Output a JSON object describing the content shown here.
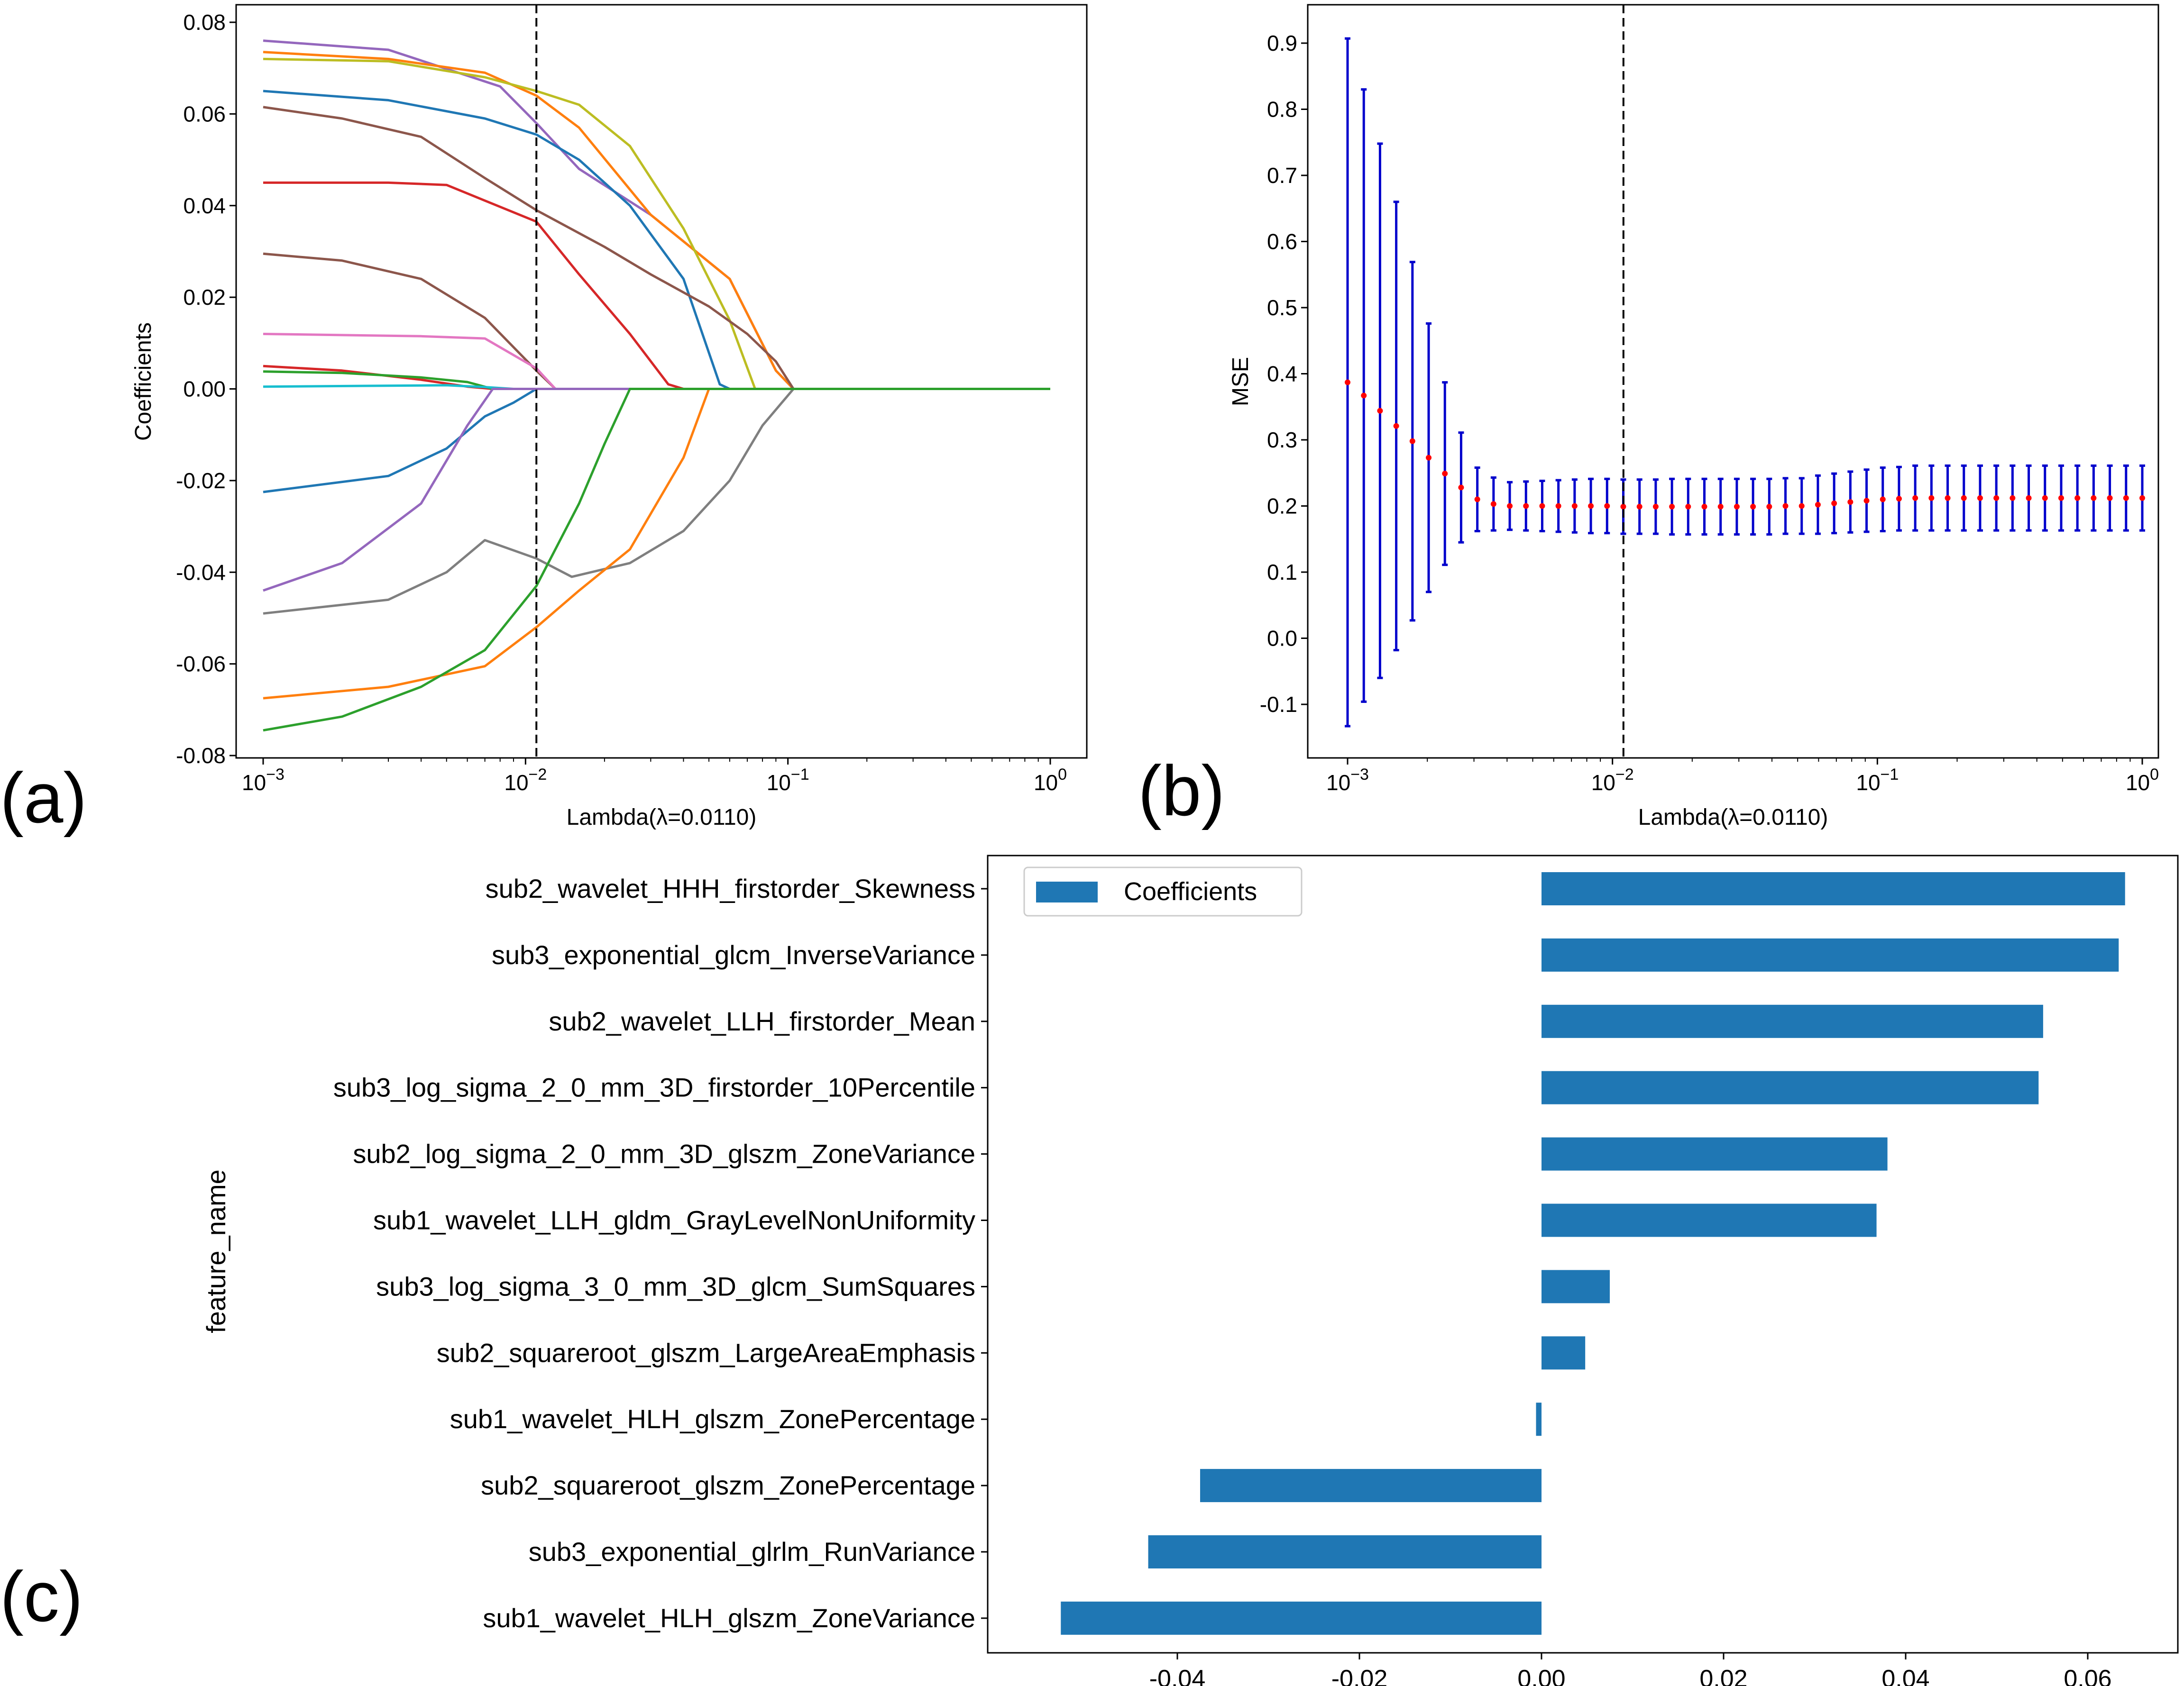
{
  "chart_data": [
    {
      "type": "line",
      "panel_label": "(a)",
      "title": "",
      "xlabel": "Lambda(λ=0.0110)",
      "ylabel": "Coefficients",
      "xscale": "log",
      "xlim": [
        0.001,
        1
      ],
      "ylim": [
        -0.08,
        0.08
      ],
      "xticks": [
        {
          "value": 0.001,
          "base": "10",
          "exp": "−3"
        },
        {
          "value": 0.01,
          "base": "10",
          "exp": "−2"
        },
        {
          "value": 0.1,
          "base": "10",
          "exp": "−1"
        },
        {
          "value": 1,
          "base": "10",
          "exp": "0"
        }
      ],
      "yticks": [
        {
          "value": 0.08,
          "label": "0.08"
        },
        {
          "value": 0.06,
          "label": "0.06"
        },
        {
          "value": 0.04,
          "label": "0.04"
        },
        {
          "value": 0.02,
          "label": "0.02"
        },
        {
          "value": 0.0,
          "label": "0.00"
        },
        {
          "value": -0.02,
          "label": "-0.02"
        },
        {
          "value": -0.04,
          "label": "-0.04"
        },
        {
          "value": -0.06,
          "label": "-0.06"
        },
        {
          "value": -0.08,
          "label": "-0.08"
        }
      ],
      "vline": 0.011,
      "series": [
        {
          "name": "f1",
          "color": "#9467bd",
          "x": [
            0.001,
            0.003,
            0.008,
            0.011,
            0.016,
            0.03,
            0.06,
            0.09,
            0.105,
            1
          ],
          "y": [
            0.076,
            0.074,
            0.066,
            0.058,
            0.048,
            0.038,
            0.024,
            0.004,
            0.0,
            0.0
          ]
        },
        {
          "name": "f2",
          "color": "#ff7f0e",
          "x": [
            0.001,
            0.003,
            0.007,
            0.011,
            0.016,
            0.03,
            0.06,
            0.09,
            0.105,
            1
          ],
          "y": [
            0.0735,
            0.072,
            0.069,
            0.064,
            0.057,
            0.038,
            0.024,
            0.004,
            0.0,
            0.0
          ]
        },
        {
          "name": "f3",
          "color": "#bcbd22",
          "x": [
            0.001,
            0.003,
            0.007,
            0.011,
            0.016,
            0.025,
            0.04,
            0.06,
            0.075,
            1
          ],
          "y": [
            0.072,
            0.0715,
            0.068,
            0.065,
            0.062,
            0.053,
            0.035,
            0.015,
            0.0,
            0.0
          ]
        },
        {
          "name": "f4",
          "color": "#1f77b4",
          "x": [
            0.001,
            0.003,
            0.007,
            0.011,
            0.016,
            0.025,
            0.04,
            0.055,
            0.06,
            1
          ],
          "y": [
            0.065,
            0.063,
            0.059,
            0.0555,
            0.05,
            0.04,
            0.024,
            0.001,
            0.0,
            0.0
          ]
        },
        {
          "name": "f5",
          "color": "#8c564b",
          "x": [
            0.001,
            0.002,
            0.004,
            0.007,
            0.011,
            0.02,
            0.03,
            0.05,
            0.07,
            0.09,
            0.105,
            1
          ],
          "y": [
            0.0615,
            0.059,
            0.055,
            0.046,
            0.039,
            0.031,
            0.025,
            0.018,
            0.012,
            0.006,
            0.0,
            0.0
          ]
        },
        {
          "name": "f6",
          "color": "#d62728",
          "x": [
            0.001,
            0.003,
            0.005,
            0.011,
            0.016,
            0.025,
            0.035,
            0.04,
            1
          ],
          "y": [
            0.045,
            0.045,
            0.0445,
            0.0365,
            0.025,
            0.012,
            0.001,
            0.0,
            0.0
          ]
        },
        {
          "name": "f7",
          "color": "#8c564b",
          "x": [
            0.001,
            0.002,
            0.004,
            0.007,
            0.011,
            0.013,
            1
          ],
          "y": [
            0.0295,
            0.028,
            0.024,
            0.0155,
            0.004,
            0.0,
            0.0
          ]
        },
        {
          "name": "f8",
          "color": "#e377c2",
          "x": [
            0.001,
            0.004,
            0.007,
            0.011,
            0.013,
            1
          ],
          "y": [
            0.012,
            0.0115,
            0.011,
            0.0045,
            0.0,
            0.0
          ]
        },
        {
          "name": "f9",
          "color": "#d62728",
          "x": [
            0.001,
            0.002,
            0.004,
            0.006,
            0.0075,
            1
          ],
          "y": [
            0.005,
            0.004,
            0.002,
            0.0005,
            0.0,
            0.0
          ]
        },
        {
          "name": "f10",
          "color": "#2ca02c",
          "x": [
            0.001,
            0.002,
            0.004,
            0.006,
            0.0075,
            1
          ],
          "y": [
            0.0038,
            0.0035,
            0.0025,
            0.0015,
            0.0,
            0.0
          ]
        },
        {
          "name": "f11",
          "color": "#17becf",
          "x": [
            0.001,
            0.005,
            0.007,
            0.009,
            1
          ],
          "y": [
            0.0005,
            0.0008,
            0.0004,
            0.0,
            0.0
          ]
        },
        {
          "name": "f12",
          "color": "#1f77b4",
          "x": [
            0.001,
            0.003,
            0.005,
            0.007,
            0.009,
            0.011,
            1
          ],
          "y": [
            -0.0225,
            -0.019,
            -0.013,
            -0.006,
            -0.003,
            0.0,
            0.0
          ]
        },
        {
          "name": "f13",
          "color": "#9467bd",
          "x": [
            0.001,
            0.002,
            0.004,
            0.006,
            0.0075,
            1
          ],
          "y": [
            -0.044,
            -0.038,
            -0.025,
            -0.008,
            0.0,
            0.0
          ]
        },
        {
          "name": "f14",
          "color": "#7f7f7f",
          "x": [
            0.001,
            0.003,
            0.005,
            0.007,
            0.011,
            0.015,
            0.025,
            0.04,
            0.06,
            0.08,
            0.105,
            1
          ],
          "y": [
            -0.049,
            -0.046,
            -0.04,
            -0.033,
            -0.037,
            -0.041,
            -0.038,
            -0.031,
            -0.02,
            -0.008,
            0.0,
            0.0
          ]
        },
        {
          "name": "f15",
          "color": "#ff7f0e",
          "x": [
            0.001,
            0.003,
            0.007,
            0.011,
            0.016,
            0.025,
            0.04,
            0.05,
            1
          ],
          "y": [
            -0.0675,
            -0.065,
            -0.0605,
            -0.052,
            -0.044,
            -0.035,
            -0.015,
            0.0,
            0.0
          ]
        },
        {
          "name": "f16",
          "color": "#2ca02c",
          "x": [
            0.001,
            0.002,
            0.004,
            0.007,
            0.011,
            0.016,
            0.02,
            0.025,
            1
          ],
          "y": [
            -0.0745,
            -0.0715,
            -0.065,
            -0.057,
            -0.043,
            -0.025,
            -0.012,
            0.0,
            0.0
          ]
        }
      ]
    },
    {
      "type": "scatter",
      "panel_label": "(b)",
      "title": "",
      "xlabel": "Lambda(λ=0.0110)",
      "ylabel": "MSE",
      "xscale": "log",
      "xlim": [
        0.001,
        1
      ],
      "ylim": [
        -0.16,
        0.96
      ],
      "xticks": [
        {
          "value": 0.001,
          "base": "10",
          "exp": "−3"
        },
        {
          "value": 0.01,
          "base": "10",
          "exp": "−2"
        },
        {
          "value": 0.1,
          "base": "10",
          "exp": "−1"
        },
        {
          "value": 1,
          "base": "10",
          "exp": "0"
        }
      ],
      "yticks": [
        {
          "value": 0.9,
          "label": "0.9"
        },
        {
          "value": 0.8,
          "label": "0.8"
        },
        {
          "value": 0.7,
          "label": "0.7"
        },
        {
          "value": 0.6,
          "label": "0.6"
        },
        {
          "value": 0.5,
          "label": "0.5"
        },
        {
          "value": 0.4,
          "label": "0.4"
        },
        {
          "value": 0.3,
          "label": "0.3"
        },
        {
          "value": 0.2,
          "label": "0.2"
        },
        {
          "value": 0.1,
          "label": "0.1"
        },
        {
          "value": 0.0,
          "label": "0.0"
        },
        {
          "value": -0.1,
          "label": "-0.1"
        }
      ],
      "vline": 0.011,
      "point_color": "#ff0000",
      "errorbar_color": "#0000cc",
      "n_points": 50,
      "mean": [
        0.387,
        0.367,
        0.344,
        0.321,
        0.298,
        0.273,
        0.249,
        0.228,
        0.21,
        0.203,
        0.2,
        0.2,
        0.2,
        0.2,
        0.2,
        0.2,
        0.2,
        0.199,
        0.199,
        0.199,
        0.199,
        0.199,
        0.199,
        0.199,
        0.199,
        0.199,
        0.199,
        0.2,
        0.2,
        0.202,
        0.204,
        0.206,
        0.208,
        0.21,
        0.211,
        0.212,
        0.212,
        0.212,
        0.212,
        0.212,
        0.212,
        0.212,
        0.212,
        0.212,
        0.212,
        0.212,
        0.212,
        0.212,
        0.212,
        0.212
      ],
      "lower": [
        -0.133,
        -0.096,
        -0.06,
        -0.018,
        0.027,
        0.07,
        0.111,
        0.145,
        0.162,
        0.163,
        0.164,
        0.163,
        0.162,
        0.161,
        0.16,
        0.159,
        0.159,
        0.158,
        0.158,
        0.158,
        0.157,
        0.157,
        0.157,
        0.157,
        0.157,
        0.157,
        0.157,
        0.158,
        0.158,
        0.158,
        0.159,
        0.16,
        0.161,
        0.162,
        0.163,
        0.163,
        0.163,
        0.163,
        0.163,
        0.163,
        0.163,
        0.163,
        0.163,
        0.163,
        0.163,
        0.163,
        0.163,
        0.163,
        0.163,
        0.163
      ],
      "upper": [
        0.907,
        0.83,
        0.748,
        0.66,
        0.569,
        0.476,
        0.387,
        0.311,
        0.258,
        0.243,
        0.236,
        0.237,
        0.238,
        0.239,
        0.24,
        0.241,
        0.241,
        0.24,
        0.24,
        0.24,
        0.241,
        0.241,
        0.241,
        0.241,
        0.241,
        0.241,
        0.241,
        0.242,
        0.242,
        0.246,
        0.249,
        0.252,
        0.255,
        0.258,
        0.259,
        0.261,
        0.261,
        0.261,
        0.261,
        0.261,
        0.261,
        0.261,
        0.261,
        0.261,
        0.261,
        0.261,
        0.261,
        0.261,
        0.261,
        0.261
      ]
    },
    {
      "type": "bar",
      "orientation": "horizontal",
      "panel_label": "(c)",
      "title": "",
      "xlabel": "",
      "ylabel": "feature_name",
      "xlim": [
        -0.058,
        0.069
      ],
      "xticks": [
        {
          "value": -0.04,
          "label": "-0.04"
        },
        {
          "value": -0.02,
          "label": "-0.02"
        },
        {
          "value": 0.0,
          "label": "0.00"
        },
        {
          "value": 0.02,
          "label": "0.02"
        },
        {
          "value": 0.04,
          "label": "0.04"
        },
        {
          "value": 0.06,
          "label": "0.06"
        }
      ],
      "bar_color": "#1f77b4",
      "legend": {
        "label": "Coefficients",
        "position": "top-left"
      },
      "categories": [
        "sub2_wavelet_HHH_firstorder_Skewness",
        "sub3_exponential_glcm_InverseVariance",
        "sub2_wavelet_LLH_firstorder_Mean",
        "sub3_log_sigma_2_0_mm_3D_firstorder_10Percentile",
        "sub2_log_sigma_2_0_mm_3D_glszm_ZoneVariance",
        "sub1_wavelet_LLH_gldm_GrayLevelNonUniformity",
        "sub3_log_sigma_3_0_mm_3D_glcm_SumSquares",
        "sub2_squareroot_glszm_LargeAreaEmphasis",
        "sub1_wavelet_HLH_glszm_ZonePercentage",
        "sub2_squareroot_glszm_ZonePercentage",
        "sub3_exponential_glrlm_RunVariance",
        "sub1_wavelet_HLH_glszm_ZoneVariance"
      ],
      "values": [
        0.0641,
        0.0634,
        0.0551,
        0.0546,
        0.038,
        0.0368,
        0.0075,
        0.0048,
        -0.0006,
        -0.0375,
        -0.0432,
        -0.0528
      ]
    }
  ]
}
